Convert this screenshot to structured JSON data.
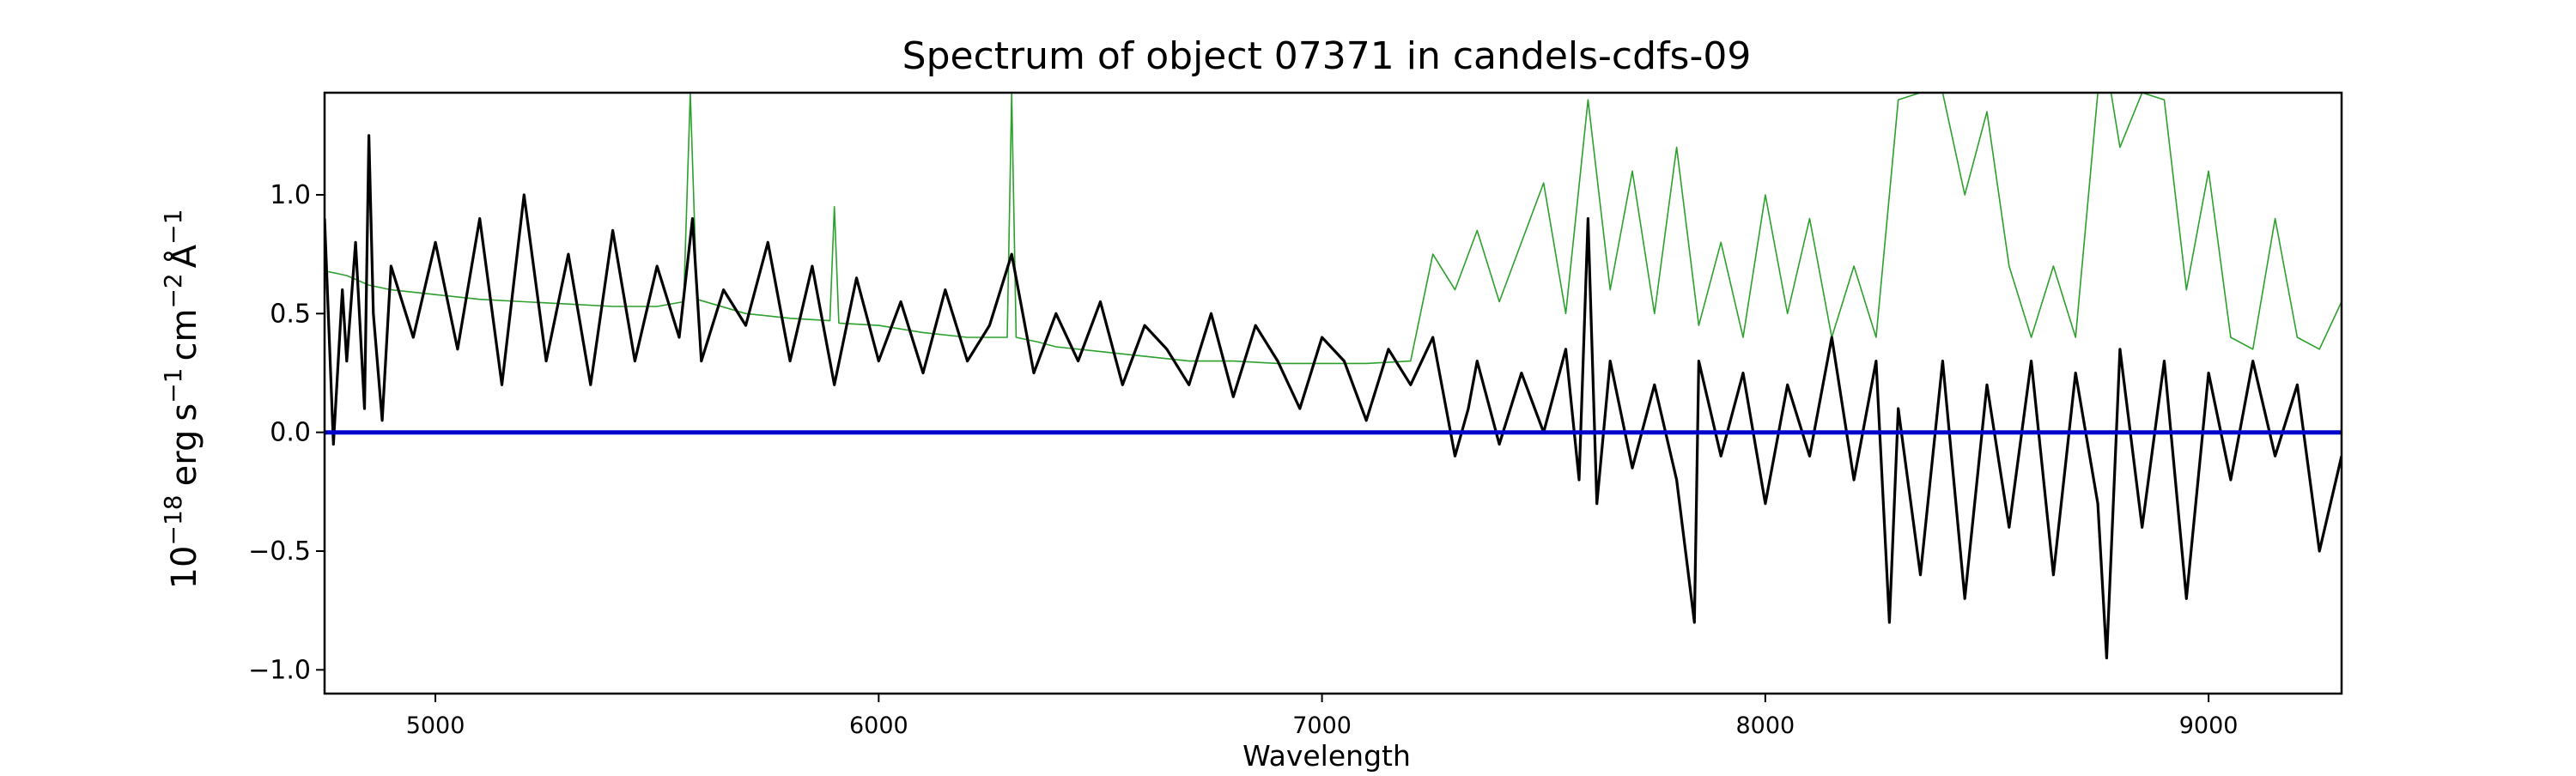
{
  "chart_data": {
    "type": "line",
    "title": "Spectrum of object 07371 in candels-cdfs-09",
    "xlabel": "Wavelength",
    "ylabel": {
      "base": "10",
      "exp": "−18",
      "erg": "erg",
      "s": "s",
      "s_exp": "−1",
      "cm": "cm",
      "cm_exp": "−2",
      "angstrom": "Å",
      "angstrom_exp": "−1"
    },
    "xlim": [
      4750,
      9300
    ],
    "ylim": [
      -1.1,
      1.43
    ],
    "xticks": [
      5000,
      6000,
      7000,
      8000,
      9000
    ],
    "xtick_labels": [
      "5000",
      "6000",
      "7000",
      "8000",
      "9000"
    ],
    "yticks": [
      -1.0,
      -0.5,
      0.0,
      0.5,
      1.0
    ],
    "ytick_labels": [
      "−1.0",
      "−0.5",
      "0.0",
      "0.5",
      "1.0"
    ],
    "grid": false,
    "series": [
      {
        "role": "error",
        "color": "#2ca02c",
        "x": [
          4750,
          4800,
          4850,
          4900,
          5000,
          5100,
          5200,
          5300,
          5400,
          5500,
          5560,
          5575,
          5590,
          5700,
          5800,
          5890,
          5900,
          5910,
          6000,
          6100,
          6200,
          6290,
          6300,
          6310,
          6360,
          6400,
          6500,
          6600,
          6700,
          6800,
          6900,
          7000,
          7100,
          7200,
          7250,
          7300,
          7350,
          7400,
          7500,
          7550,
          7600,
          7650,
          7700,
          7750,
          7800,
          7850,
          7900,
          7950,
          8000,
          8050,
          8100,
          8150,
          8200,
          8250,
          8280,
          8300,
          8350,
          8400,
          8450,
          8500,
          8550,
          8600,
          8650,
          8700,
          8750,
          8780,
          8800,
          8850,
          8900,
          8950,
          9000,
          9050,
          9100,
          9150,
          9200,
          9250,
          9300
        ],
        "values": [
          0.68,
          0.66,
          0.62,
          0.6,
          0.58,
          0.56,
          0.55,
          0.54,
          0.53,
          0.53,
          0.55,
          1.43,
          0.56,
          0.5,
          0.48,
          0.47,
          0.95,
          0.46,
          0.45,
          0.42,
          0.4,
          0.4,
          1.43,
          0.4,
          0.38,
          0.36,
          0.34,
          0.32,
          0.3,
          0.3,
          0.29,
          0.29,
          0.29,
          0.3,
          0.75,
          0.6,
          0.85,
          0.55,
          1.05,
          0.5,
          1.4,
          0.6,
          1.1,
          0.5,
          1.2,
          0.45,
          0.8,
          0.4,
          1.0,
          0.5,
          0.9,
          0.4,
          0.7,
          0.4,
          1.0,
          1.4,
          1.43,
          1.43,
          1.0,
          1.35,
          0.7,
          0.4,
          0.7,
          0.4,
          1.43,
          1.43,
          1.2,
          1.43,
          1.4,
          0.6,
          1.1,
          0.4,
          0.35,
          0.9,
          0.4,
          0.35,
          0.55
        ]
      },
      {
        "role": "flux",
        "color": "#000000",
        "x": [
          4750,
          4770,
          4790,
          4800,
          4820,
          4840,
          4850,
          4860,
          4880,
          4900,
          4950,
          5000,
          5050,
          5100,
          5150,
          5200,
          5250,
          5300,
          5350,
          5400,
          5450,
          5500,
          5550,
          5580,
          5600,
          5650,
          5700,
          5750,
          5800,
          5850,
          5900,
          5950,
          6000,
          6050,
          6100,
          6150,
          6200,
          6250,
          6300,
          6350,
          6400,
          6450,
          6500,
          6550,
          6600,
          6650,
          6700,
          6750,
          6800,
          6850,
          6900,
          6950,
          7000,
          7050,
          7100,
          7150,
          7200,
          7250,
          7300,
          7330,
          7350,
          7400,
          7450,
          7500,
          7550,
          7580,
          7600,
          7620,
          7650,
          7700,
          7750,
          7800,
          7840,
          7850,
          7900,
          7950,
          8000,
          8050,
          8100,
          8150,
          8200,
          8250,
          8280,
          8300,
          8350,
          8400,
          8450,
          8500,
          8550,
          8600,
          8650,
          8700,
          8750,
          8770,
          8800,
          8850,
          8900,
          8950,
          9000,
          9050,
          9100,
          9150,
          9200,
          9250,
          9300
        ],
        "values": [
          0.9,
          -0.05,
          0.6,
          0.3,
          0.8,
          0.1,
          1.25,
          0.5,
          0.05,
          0.7,
          0.4,
          0.8,
          0.35,
          0.9,
          0.2,
          1.0,
          0.3,
          0.75,
          0.2,
          0.85,
          0.3,
          0.7,
          0.4,
          0.9,
          0.3,
          0.6,
          0.45,
          0.8,
          0.3,
          0.7,
          0.2,
          0.65,
          0.3,
          0.55,
          0.25,
          0.6,
          0.3,
          0.45,
          0.75,
          0.25,
          0.5,
          0.3,
          0.55,
          0.2,
          0.45,
          0.35,
          0.2,
          0.5,
          0.15,
          0.45,
          0.3,
          0.1,
          0.4,
          0.3,
          0.05,
          0.35,
          0.2,
          0.4,
          -0.1,
          0.1,
          0.3,
          -0.05,
          0.25,
          0.0,
          0.35,
          -0.2,
          0.9,
          -0.3,
          0.3,
          -0.15,
          0.2,
          -0.2,
          -0.8,
          0.3,
          -0.1,
          0.25,
          -0.3,
          0.2,
          -0.1,
          0.4,
          -0.2,
          0.3,
          -0.8,
          0.1,
          -0.6,
          0.3,
          -0.7,
          0.2,
          -0.4,
          0.3,
          -0.6,
          0.25,
          -0.3,
          -0.95,
          0.35,
          -0.4,
          0.3,
          -0.7,
          0.25,
          -0.2,
          0.3,
          -0.1,
          0.2,
          -0.5,
          -0.1
        ]
      },
      {
        "role": "zero",
        "color": "#0000cd",
        "x": [
          4750,
          9300
        ],
        "values": [
          0,
          0
        ]
      }
    ]
  }
}
